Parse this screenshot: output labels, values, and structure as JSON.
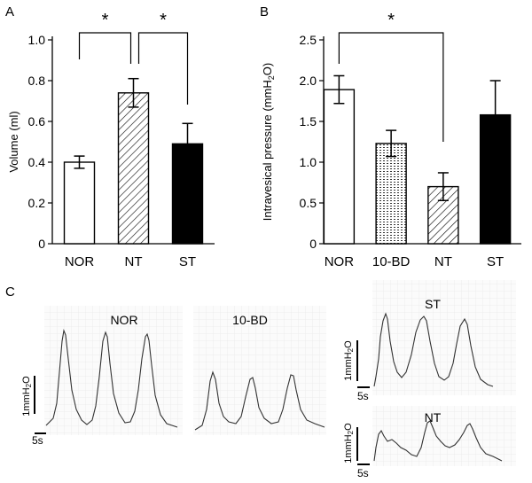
{
  "panels": {
    "a": {
      "label": "A"
    },
    "b": {
      "label": "B"
    },
    "c": {
      "label": "C"
    }
  },
  "chart_data": [
    {
      "type": "bar",
      "panel": "A",
      "categories": [
        "NOR",
        "NT",
        "ST"
      ],
      "values": [
        0.4,
        0.74,
        0.49
      ],
      "errors": [
        0.03,
        0.07,
        0.1
      ],
      "fill_styles": [
        "white",
        "diagonal-hatch",
        "black"
      ],
      "ylabel": "Volume (ml)",
      "ylim": [
        0,
        1.0
      ],
      "yticks": [
        "0",
        "0.2",
        "0.4",
        "0.6",
        "0.8",
        "1.0"
      ],
      "significance": [
        {
          "from": "NOR",
          "to": "NT",
          "label": "*"
        },
        {
          "from": "NT",
          "to": "ST",
          "label": "*"
        }
      ]
    },
    {
      "type": "bar",
      "panel": "B",
      "categories": [
        "NOR",
        "10-BD",
        "NT",
        "ST"
      ],
      "values": [
        1.89,
        1.23,
        0.7,
        1.58
      ],
      "errors": [
        0.17,
        0.16,
        0.17,
        0.42
      ],
      "fill_styles": [
        "white",
        "dotted",
        "diagonal-hatch",
        "black"
      ],
      "ylabel": "Intravesical pressure (mmH2O)",
      "ylim": [
        0,
        2.5
      ],
      "yticks": [
        "0",
        "0.5",
        "1.0",
        "1.5",
        "2.0",
        "2.5"
      ],
      "significance": [
        {
          "from": "NOR",
          "to": "NT",
          "label": "*"
        }
      ]
    }
  ],
  "traces": [
    {
      "title": "NOR",
      "scale_label": "1mmH2O",
      "time_label": "5s"
    },
    {
      "title": "10-BD",
      "scale_label": "",
      "time_label": ""
    },
    {
      "title": "ST",
      "scale_label": "1mmH2O",
      "time_label": "5s"
    },
    {
      "title": "NT",
      "scale_label": "1mmH2O",
      "time_label": "5s"
    }
  ]
}
